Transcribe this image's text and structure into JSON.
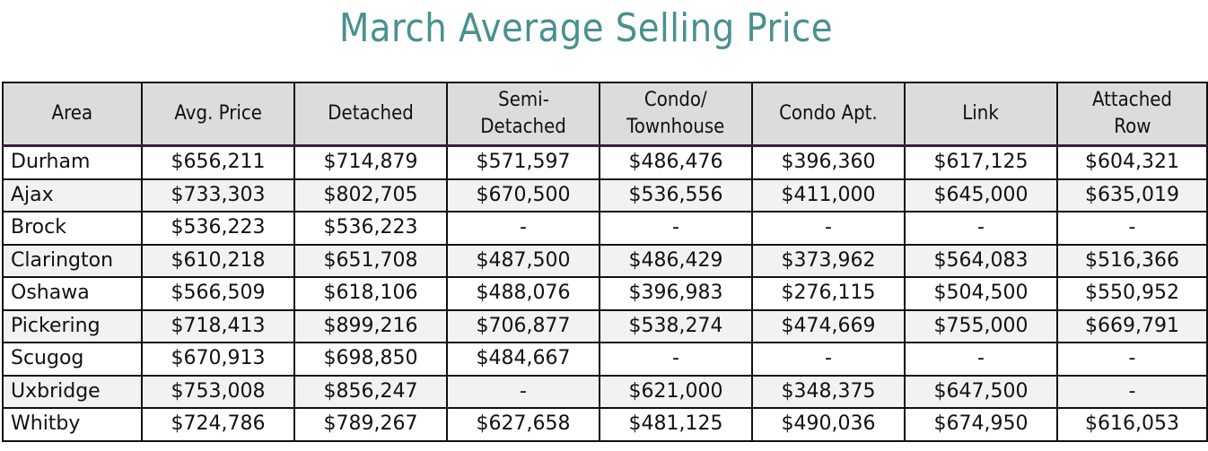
{
  "title": "March Average Selling Price",
  "table": {
    "headers": [
      "Area",
      "Avg. Price",
      "Detached",
      "Semi-\nDetached",
      "Condo/\nTownhouse",
      "Condo Apt.",
      "Link",
      "Attached\nRow"
    ],
    "rows": [
      [
        "Durham",
        "$656,211",
        "$714,879",
        "$571,597",
        "$486,476",
        "$396,360",
        "$617,125",
        "$604,321"
      ],
      [
        "Ajax",
        "$733,303",
        "$802,705",
        "$670,500",
        "$536,556",
        "$411,000",
        "$645,000",
        "$635,019"
      ],
      [
        "Brock",
        "$536,223",
        "$536,223",
        "-",
        "-",
        "-",
        "-",
        "-"
      ],
      [
        "Clarington",
        "$610,218",
        "$651,708",
        "$487,500",
        "$486,429",
        "$373,962",
        "$564,083",
        "$516,366"
      ],
      [
        "Oshawa",
        "$566,509",
        "$618,106",
        "$488,076",
        "$396,983",
        "$276,115",
        "$504,500",
        "$550,952"
      ],
      [
        "Pickering",
        "$718,413",
        "$899,216",
        "$706,877",
        "$538,274",
        "$474,669",
        "$755,000",
        "$669,791"
      ],
      [
        "Scugog",
        "$670,913",
        "$698,850",
        "$484,667",
        "-",
        "-",
        "-",
        "-"
      ],
      [
        "Uxbridge",
        "$753,008",
        "$856,247",
        "-",
        "$621,000",
        "$348,375",
        "$647,500",
        "-"
      ],
      [
        "Whitby",
        "$724,786",
        "$789,267",
        "$627,658",
        "$481,125",
        "$490,036",
        "$674,950",
        "$616,053"
      ]
    ]
  },
  "colors": {
    "title": "#4a9090",
    "header_bg": "#dcdcdc",
    "alt_row_bg": "#f2f2f2",
    "header_rule": "#3a1a40"
  }
}
